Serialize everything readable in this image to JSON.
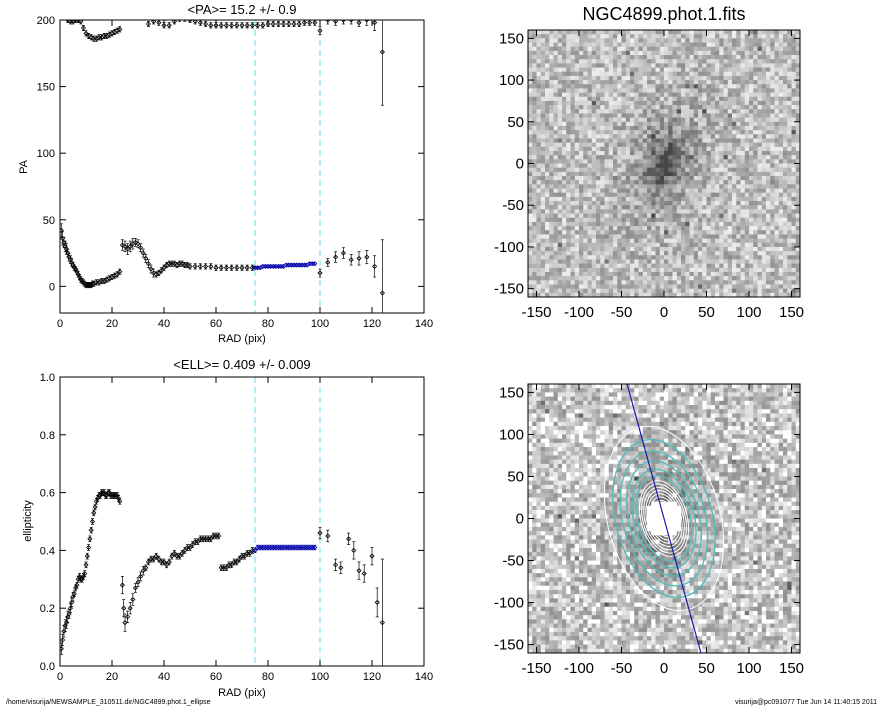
{
  "chart_data": [
    {
      "type": "scatter",
      "title": "<PA>=  15.2 +/-   0.9",
      "xlabel": "RAD (pix)",
      "ylabel": "PA",
      "xlim": [
        0,
        140
      ],
      "ylim": [
        -20,
        200
      ],
      "xticks": [
        "0",
        "20",
        "40",
        "60",
        "80",
        "100",
        "120",
        "140"
      ],
      "yticks": [
        "0",
        "50",
        "100",
        "150",
        "200"
      ],
      "vlines": [
        75,
        100
      ],
      "series": [
        {
          "marker": "diamond",
          "color": "#000000",
          "x": [
            0.5,
            1,
            1.5,
            2,
            2.5,
            3,
            3.5,
            4,
            4.5,
            5,
            5.5,
            6,
            6.5,
            7,
            7.5,
            8,
            8.5,
            9,
            9.5,
            10,
            10.5,
            11,
            11.5,
            12,
            12.5,
            13,
            14,
            15,
            16,
            17,
            18,
            19,
            20,
            21,
            22,
            23
          ],
          "y": [
            42,
            36,
            33,
            30,
            28,
            25,
            22,
            20,
            18,
            16,
            14,
            13,
            11,
            9,
            7,
            5,
            4,
            3,
            2,
            1,
            1,
            1,
            1,
            1,
            2,
            2,
            3,
            3,
            4,
            4,
            5,
            6,
            7,
            8,
            9,
            11
          ],
          "err": [
            5,
            5,
            4,
            4,
            4,
            3,
            3,
            3,
            3,
            2,
            2,
            2,
            2,
            2,
            2,
            2,
            2,
            2,
            2,
            2,
            2,
            2,
            2,
            2,
            2,
            2,
            2,
            2,
            2,
            2,
            2,
            2,
            2,
            2,
            2,
            2
          ]
        },
        {
          "marker": "diamond",
          "color": "#000000",
          "x": [
            3,
            4,
            5,
            6,
            7,
            8,
            9,
            10,
            11,
            12,
            13,
            14,
            15,
            16,
            17,
            18,
            19,
            20,
            21,
            22,
            23
          ],
          "y": [
            200,
            199,
            199,
            200,
            200,
            199,
            194,
            190,
            188,
            187,
            186,
            186,
            187,
            187,
            188,
            188,
            189,
            190,
            191,
            192,
            193
          ],
          "err": [
            2,
            2,
            2,
            2,
            2,
            2,
            2,
            2,
            2,
            2,
            2,
            2,
            2,
            2,
            2,
            2,
            2,
            2,
            2,
            2,
            2
          ]
        },
        {
          "marker": "diamond",
          "color": "#000000",
          "x": [
            24,
            25,
            26,
            27,
            28,
            29,
            30,
            31,
            32,
            33,
            34,
            35,
            36,
            37,
            38,
            39,
            40,
            41,
            42,
            43,
            44,
            45,
            46,
            47,
            48,
            49,
            50,
            52,
            54,
            56,
            58,
            60,
            62,
            64,
            66,
            68,
            70,
            72,
            74
          ],
          "y": [
            31,
            30,
            28,
            30,
            32,
            33,
            32,
            29,
            25,
            21,
            17,
            13,
            10,
            9,
            10,
            12,
            14,
            16,
            17,
            17,
            17,
            16,
            17,
            17,
            16,
            16,
            15,
            15,
            15,
            15,
            15,
            14,
            14,
            14,
            14,
            14,
            14,
            14,
            14
          ],
          "err": [
            4,
            4,
            4,
            4,
            4,
            3,
            3,
            3,
            3,
            3,
            3,
            3,
            3,
            2,
            2,
            2,
            2,
            2,
            2,
            2,
            2,
            2,
            2,
            2,
            2,
            2,
            2,
            2,
            2,
            2,
            2,
            2,
            2,
            2,
            2,
            2,
            2,
            2,
            2
          ]
        },
        {
          "marker": "diamond",
          "color": "#000000",
          "x": [
            34,
            36,
            38,
            40,
            42,
            44,
            46,
            48,
            50,
            52,
            54,
            56,
            58,
            60,
            62,
            64,
            66,
            68,
            70,
            72,
            74,
            76,
            78,
            80,
            82,
            84,
            86,
            88,
            90,
            92,
            94,
            96,
            98
          ],
          "y": [
            197,
            199,
            198,
            196,
            196,
            199,
            201,
            201,
            200,
            199,
            198,
            197,
            196,
            196,
            196,
            196,
            196,
            196,
            196,
            196,
            196,
            196,
            196,
            197,
            197,
            197,
            197,
            197,
            197,
            197,
            198,
            198,
            198
          ],
          "err": [
            2,
            2,
            2,
            2,
            2,
            2,
            2,
            2,
            2,
            2,
            2,
            2,
            2,
            2,
            2,
            2,
            2,
            2,
            2,
            2,
            2,
            2,
            2,
            2,
            2,
            2,
            2,
            2,
            2,
            2,
            2,
            2,
            2
          ]
        },
        {
          "marker": "diamond",
          "color": "#0000aa",
          "x": [
            75,
            76,
            77,
            78,
            79,
            80,
            81,
            82,
            83,
            84,
            85,
            86,
            87,
            88,
            89,
            90,
            91,
            92,
            93,
            94,
            95,
            96,
            97,
            98
          ],
          "y": [
            14,
            14,
            14,
            15,
            15,
            15,
            15,
            15,
            15,
            15,
            15,
            15,
            16,
            16,
            16,
            16,
            16,
            16,
            16,
            16,
            16,
            17,
            17,
            17
          ],
          "err": [
            1,
            1,
            1,
            1,
            1,
            1,
            1,
            1,
            1,
            1,
            1,
            1,
            1,
            1,
            1,
            1,
            1,
            1,
            1,
            1,
            1,
            1,
            1,
            1
          ]
        },
        {
          "marker": "diamond",
          "color": "#000000",
          "x": [
            100,
            103,
            106,
            109,
            112,
            115,
            118,
            121,
            124
          ],
          "y": [
            10,
            18,
            22,
            25,
            20,
            21,
            22,
            15,
            -5
          ],
          "err": [
            3,
            3,
            4,
            4,
            4,
            5,
            5,
            8,
            40
          ]
        },
        {
          "marker": "diamond",
          "color": "#000000",
          "x": [
            100,
            103,
            106,
            109,
            112,
            115,
            118,
            121,
            124
          ],
          "y": [
            192,
            200,
            199,
            200,
            200,
            198,
            200,
            198,
            176
          ],
          "err": [
            3,
            3,
            3,
            3,
            3,
            3,
            4,
            6,
            40
          ]
        }
      ]
    },
    {
      "type": "scatter",
      "title": "<ELL>= 0.409 +/-  0.009",
      "xlabel": "RAD (pix)",
      "ylabel": "ellipticity",
      "xlim": [
        0,
        140
      ],
      "ylim": [
        0,
        1
      ],
      "xticks": [
        "0",
        "20",
        "40",
        "60",
        "80",
        "100",
        "120",
        "140"
      ],
      "yticks": [
        "0.0",
        "0.2",
        "0.4",
        "0.6",
        "0.8",
        "1.0"
      ],
      "vlines": [
        75,
        100
      ],
      "series": [
        {
          "marker": "diamond",
          "color": "#000000",
          "x": [
            0.5,
            1,
            1.5,
            2,
            2.5,
            3,
            3.5,
            4,
            4.5,
            5,
            5.5,
            6,
            6.5,
            7,
            7.5,
            8,
            8.5,
            9,
            9.5,
            10,
            10.5,
            11,
            11.5,
            12,
            12.5,
            13,
            13.5,
            14,
            14.5,
            15,
            15.5,
            16,
            16.5,
            17,
            17.5,
            18,
            18.5,
            19,
            19.5,
            20,
            20.5,
            21,
            21.5,
            22,
            22.5,
            23
          ],
          "y": [
            0.06,
            0.09,
            0.12,
            0.14,
            0.15,
            0.17,
            0.18,
            0.2,
            0.22,
            0.24,
            0.25,
            0.27,
            0.28,
            0.3,
            0.31,
            0.3,
            0.3,
            0.31,
            0.32,
            0.35,
            0.38,
            0.41,
            0.44,
            0.47,
            0.5,
            0.53,
            0.55,
            0.57,
            0.58,
            0.59,
            0.59,
            0.6,
            0.6,
            0.6,
            0.59,
            0.59,
            0.6,
            0.6,
            0.59,
            0.59,
            0.59,
            0.59,
            0.59,
            0.59,
            0.58,
            0.57
          ],
          "err": [
            0.02,
            0.02,
            0.02,
            0.02,
            0.02,
            0.02,
            0.015,
            0.015,
            0.015,
            0.015,
            0.01,
            0.01,
            0.01,
            0.01,
            0.01,
            0.01,
            0.01,
            0.01,
            0.01,
            0.01,
            0.01,
            0.01,
            0.01,
            0.01,
            0.01,
            0.01,
            0.01,
            0.01,
            0.01,
            0.01,
            0.01,
            0.01,
            0.01,
            0.01,
            0.01,
            0.01,
            0.01,
            0.01,
            0.01,
            0.01,
            0.01,
            0.01,
            0.01,
            0.01,
            0.01,
            0.01
          ]
        },
        {
          "marker": "diamond",
          "color": "#000000",
          "x": [
            24,
            24.5,
            25,
            26,
            27,
            28,
            29,
            30,
            31,
            32,
            33,
            34,
            35,
            36,
            37,
            38,
            39,
            40,
            41,
            42,
            43,
            44,
            45,
            46,
            47,
            48,
            49,
            50,
            51,
            52,
            53,
            54,
            55,
            56,
            57,
            58,
            59,
            60,
            61
          ],
          "y": [
            0.28,
            0.2,
            0.15,
            0.17,
            0.2,
            0.23,
            0.27,
            0.29,
            0.31,
            0.33,
            0.34,
            0.36,
            0.37,
            0.37,
            0.38,
            0.37,
            0.36,
            0.36,
            0.35,
            0.36,
            0.38,
            0.39,
            0.38,
            0.38,
            0.39,
            0.4,
            0.41,
            0.41,
            0.42,
            0.43,
            0.43,
            0.44,
            0.44,
            0.44,
            0.44,
            0.44,
            0.45,
            0.45,
            0.45
          ],
          "err": [
            0.03,
            0.03,
            0.03,
            0.02,
            0.02,
            0.02,
            0.015,
            0.015,
            0.015,
            0.015,
            0.01,
            0.01,
            0.01,
            0.01,
            0.01,
            0.01,
            0.01,
            0.01,
            0.01,
            0.01,
            0.01,
            0.01,
            0.01,
            0.01,
            0.01,
            0.01,
            0.01,
            0.01,
            0.01,
            0.01,
            0.01,
            0.01,
            0.01,
            0.01,
            0.01,
            0.01,
            0.01,
            0.01,
            0.01
          ]
        },
        {
          "marker": "diamond",
          "color": "#000000",
          "x": [
            62,
            63,
            64,
            65,
            66,
            67,
            68,
            69,
            70,
            71,
            72,
            73,
            74
          ],
          "y": [
            0.34,
            0.34,
            0.34,
            0.35,
            0.35,
            0.36,
            0.36,
            0.37,
            0.38,
            0.38,
            0.39,
            0.39,
            0.4
          ],
          "err": [
            0.01,
            0.01,
            0.01,
            0.01,
            0.01,
            0.01,
            0.01,
            0.01,
            0.01,
            0.01,
            0.01,
            0.01,
            0.01
          ]
        },
        {
          "marker": "diamond",
          "color": "#0000aa",
          "x": [
            75,
            76,
            77,
            78,
            79,
            80,
            81,
            82,
            83,
            84,
            85,
            86,
            87,
            88,
            89,
            90,
            91,
            92,
            93,
            94,
            95,
            96,
            97,
            98
          ],
          "y": [
            0.4,
            0.41,
            0.41,
            0.41,
            0.41,
            0.41,
            0.41,
            0.41,
            0.41,
            0.41,
            0.41,
            0.41,
            0.41,
            0.41,
            0.41,
            0.41,
            0.41,
            0.41,
            0.41,
            0.41,
            0.41,
            0.41,
            0.41,
            0.41
          ],
          "err": [
            0.008,
            0.008,
            0.008,
            0.008,
            0.008,
            0.008,
            0.008,
            0.008,
            0.008,
            0.008,
            0.008,
            0.008,
            0.008,
            0.008,
            0.008,
            0.008,
            0.008,
            0.008,
            0.008,
            0.008,
            0.008,
            0.008,
            0.008,
            0.008
          ]
        },
        {
          "marker": "diamond",
          "color": "#000000",
          "x": [
            100,
            103,
            106,
            108,
            111,
            113,
            115,
            117,
            120,
            122,
            124
          ],
          "y": [
            0.46,
            0.45,
            0.35,
            0.34,
            0.44,
            0.4,
            0.33,
            0.32,
            0.38,
            0.22,
            0.15
          ],
          "err": [
            0.02,
            0.02,
            0.02,
            0.02,
            0.02,
            0.03,
            0.03,
            0.03,
            0.03,
            0.05,
            0.22
          ]
        }
      ]
    }
  ],
  "images": [
    {
      "title": "NGC4899.phot.1.fits",
      "xticks": [
        "-150",
        "-100",
        "-50",
        "0",
        "50",
        "100",
        "150"
      ],
      "yticks": [
        "150",
        "100",
        "50",
        "0",
        "-50",
        "-100",
        "-150"
      ],
      "extent": [
        -160,
        160,
        -160,
        160
      ],
      "galaxy_pa_deg": 15.2,
      "ellipticity": 0.409
    },
    {
      "title": "",
      "xticks": [
        "-50",
        "0",
        "50",
        "100",
        "150",
        "-150",
        "-100"
      ],
      "yticks": [
        "150",
        "100",
        "50",
        "0",
        "-50",
        "-100",
        "-150"
      ],
      "extent": [
        -160,
        160,
        -160,
        160
      ],
      "contour_colors": [
        "#ffffff",
        "#55bbbb"
      ],
      "pa_line_color": "#1a1aaa"
    }
  ],
  "footer": {
    "left": "/home/visurija/NEWSAMPLE_310511.dir/NGC4899.phot.1_ellipse",
    "right": "visurija@pc091077  Tue Jun 14 11:40:15 2011"
  }
}
